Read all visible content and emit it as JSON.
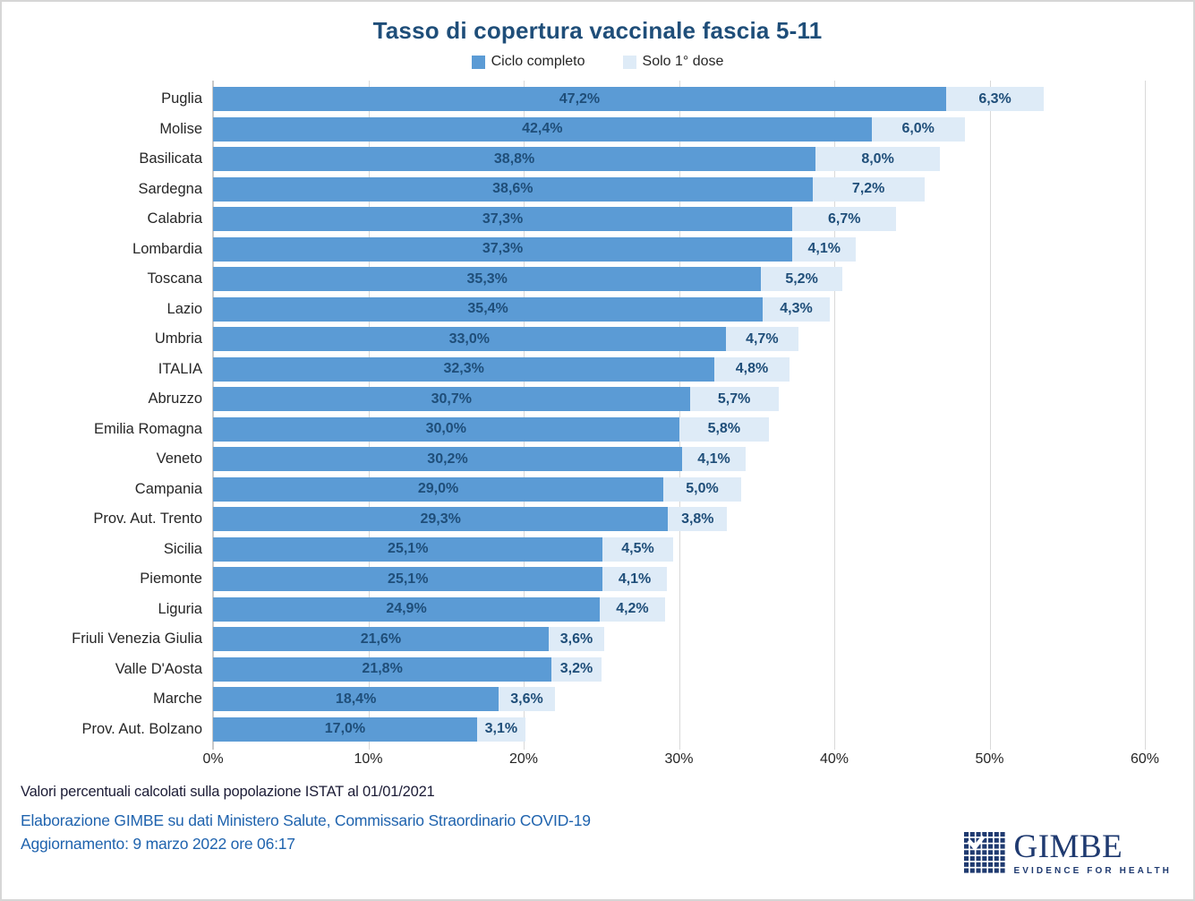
{
  "title": "Tasso di copertura vaccinale fascia 5-11",
  "legend": {
    "items": [
      {
        "label": "Ciclo completo",
        "color": "#5B9BD5"
      },
      {
        "label": "Solo 1° dose",
        "color": "#DEEBF7"
      }
    ]
  },
  "chart_data": {
    "type": "bar",
    "orientation": "horizontal",
    "stacked": true,
    "grid": true,
    "legend_position": "top",
    "xlim": [
      0,
      60
    ],
    "x_ticks": [
      "0%",
      "10%",
      "20%",
      "30%",
      "40%",
      "50%",
      "60%"
    ],
    "categories": [
      "Puglia",
      "Molise",
      "Basilicata",
      "Sardegna",
      "Calabria",
      "Lombardia",
      "Toscana",
      "Lazio",
      "Umbria",
      "ITALIA",
      "Abruzzo",
      "Emilia Romagna",
      "Veneto",
      "Campania",
      "Prov. Aut. Trento",
      "Sicilia",
      "Piemonte",
      "Liguria",
      "Friuli Venezia Giulia",
      "Valle D'Aosta",
      "Marche",
      "Prov. Aut. Bolzano"
    ],
    "series": [
      {
        "name": "Ciclo completo",
        "color": "#5B9BD5",
        "values": [
          47.2,
          42.4,
          38.8,
          38.6,
          37.3,
          37.3,
          35.3,
          35.4,
          33.0,
          32.3,
          30.7,
          30.0,
          30.2,
          29.0,
          29.3,
          25.1,
          25.1,
          24.9,
          21.6,
          21.8,
          18.4,
          17.0
        ],
        "labels": [
          "47,2%",
          "42,4%",
          "38,8%",
          "38,6%",
          "37,3%",
          "37,3%",
          "35,3%",
          "35,4%",
          "33,0%",
          "32,3%",
          "30,7%",
          "30,0%",
          "30,2%",
          "29,0%",
          "29,3%",
          "25,1%",
          "25,1%",
          "24,9%",
          "21,6%",
          "21,8%",
          "18,4%",
          "17,0%"
        ]
      },
      {
        "name": "Solo 1° dose",
        "color": "#DEEBF7",
        "values": [
          6.3,
          6.0,
          8.0,
          7.2,
          6.7,
          4.1,
          5.2,
          4.3,
          4.7,
          4.8,
          5.7,
          5.8,
          4.1,
          5.0,
          3.8,
          4.5,
          4.1,
          4.2,
          3.6,
          3.2,
          3.6,
          3.1
        ],
        "labels": [
          "6,3%",
          "6,0%",
          "8,0%",
          "7,2%",
          "6,7%",
          "4,1%",
          "5,2%",
          "4,3%",
          "4,7%",
          "4,8%",
          "5,7%",
          "5,8%",
          "4,1%",
          "5,0%",
          "3,8%",
          "4,5%",
          "4,1%",
          "4,2%",
          "3,6%",
          "3,2%",
          "3,6%",
          "3,1%"
        ]
      }
    ]
  },
  "footer": {
    "note": "Valori percentuali calcolati sulla popolazione ISTAT al 01/01/2021",
    "source": "Elaborazione GIMBE su dati Ministero Salute, Commissario Straordinario COVID-19",
    "update": "Aggiornamento: 9 marzo 2022 ore 06:17"
  },
  "logo": {
    "name": "GIMBE",
    "tagline": "EVIDENCE FOR HEALTH"
  },
  "colors": {
    "bar_dark": "#5B9BD5",
    "bar_light": "#DEEBF7",
    "value_label": "#1F4E79",
    "title": "#1F4E79",
    "footer_blue": "#1F63AE",
    "logo_navy": "#1F3A70",
    "gridline": "#D9D9D9"
  }
}
